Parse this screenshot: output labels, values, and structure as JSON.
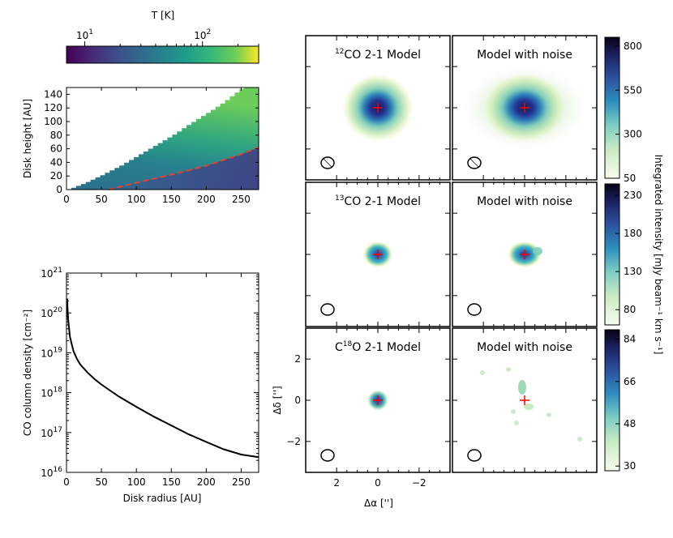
{
  "chart_data": [
    {
      "type": "heatmap",
      "panel": "temperature-colorbar",
      "label": "T [K]",
      "scale": "log",
      "colormap": "viridis",
      "range": [
        7,
        300
      ],
      "ticks": [
        {
          "base": "10",
          "exp": "1",
          "value": 10
        },
        {
          "base": "10",
          "exp": "2",
          "value": 100
        }
      ]
    },
    {
      "type": "heatmap",
      "panel": "disk-temperature-structure",
      "colormap": "viridis",
      "ylabel": "Disk height [AU]",
      "xlim": [
        0,
        275
      ],
      "ylim": [
        0,
        150
      ],
      "xticks": [
        "0",
        "50",
        "100",
        "150",
        "200",
        "250"
      ],
      "yticks": [
        "0",
        "20",
        "40",
        "60",
        "80",
        "100",
        "120",
        "140"
      ],
      "xtick_values": [
        0,
        50,
        100,
        150,
        200,
        250
      ],
      "ytick_values": [
        0,
        20,
        40,
        60,
        80,
        100,
        120,
        140
      ],
      "disk_surface": {
        "x": [
          0,
          25,
          50,
          75,
          100,
          125,
          150,
          175,
          200,
          225,
          250,
          275
        ],
        "y": [
          0,
          10,
          22,
          35,
          50,
          65,
          80,
          97,
          113,
          130,
          150,
          150
        ]
      },
      "dashed_line": {
        "color": "#e8402f",
        "x": [
          60,
          100,
          150,
          200,
          250,
          275
        ],
        "y": [
          0,
          10,
          22,
          35,
          52,
          62
        ]
      }
    },
    {
      "type": "line",
      "panel": "co-column-density",
      "xlabel": "Disk radius [AU]",
      "ylabel": "CO column density [cm⁻²]",
      "yscale": "log",
      "xlim": [
        0,
        275
      ],
      "ylim": [
        1e+16,
        1e+21
      ],
      "xticks": [
        "0",
        "50",
        "100",
        "150",
        "200",
        "250"
      ],
      "xtick_values": [
        0,
        50,
        100,
        150,
        200,
        250
      ],
      "yticks": [
        {
          "base": "10",
          "exp": "16",
          "value": 16
        },
        {
          "base": "10",
          "exp": "17",
          "value": 17
        },
        {
          "base": "10",
          "exp": "18",
          "value": 18
        },
        {
          "base": "10",
          "exp": "19",
          "value": 19
        },
        {
          "base": "10",
          "exp": "20",
          "value": 20
        },
        {
          "base": "10",
          "exp": "21",
          "value": 21
        }
      ],
      "series": [
        {
          "x": [
            1,
            2,
            5,
            10,
            15,
            20,
            30,
            40,
            50,
            75,
            100,
            125,
            150,
            175,
            200,
            225,
            250,
            275
          ],
          "y": [
            2.3e+20,
            8e+19,
            2.5e+19,
            1.1e+19,
            7e+18,
            5e+18,
            3.2e+18,
            2.2e+18,
            1.6e+18,
            8e+17,
            4.4e+17,
            2.5e+17,
            1.5e+17,
            9e+16,
            5.8e+16,
            3.8e+16,
            2.8e+16,
            2.4e+16
          ]
        }
      ]
    },
    {
      "type": "heatmap",
      "panel": "channel-maps",
      "xlabel": "Δα ['']",
      "ylabel": "Δδ ['']",
      "xlim": [
        3.5,
        -3.5
      ],
      "ylim": [
        -3.5,
        3.5
      ],
      "xticks": [
        "2",
        "0",
        "−2"
      ],
      "xtick_values": [
        2,
        0,
        -2
      ],
      "yticks": [
        "2",
        "0",
        "−2"
      ],
      "ytick_values": [
        2,
        0,
        -2
      ],
      "colorbar_label": "Integrated intensity  [mJy beam⁻¹ km s⁻¹]",
      "rows": [
        {
          "model_title": {
            "sup": "12",
            "rest": "CO 2-1 Model"
          },
          "noise_title": "Model with noise",
          "colorbar_ticks": [
            "800",
            "550",
            "300",
            "50"
          ],
          "colorbar_values": [
            800,
            550,
            300,
            50
          ],
          "colorbar_range": [
            50,
            850
          ]
        },
        {
          "model_title": {
            "sup": "13",
            "rest": "CO 2-1 Model"
          },
          "noise_title": "Model with noise",
          "colorbar_ticks": [
            "230",
            "180",
            "130",
            "80"
          ],
          "colorbar_values": [
            230,
            180,
            130,
            80
          ],
          "colorbar_range": [
            60,
            245
          ]
        },
        {
          "model_title": {
            "pre": "C",
            "sup": "18",
            "rest": "O 2-1 Model"
          },
          "noise_title": "Model with noise",
          "colorbar_ticks": [
            "84",
            "66",
            "48",
            "30"
          ],
          "colorbar_values": [
            84,
            66,
            48,
            30
          ],
          "colorbar_range": [
            28,
            88
          ]
        }
      ]
    }
  ]
}
